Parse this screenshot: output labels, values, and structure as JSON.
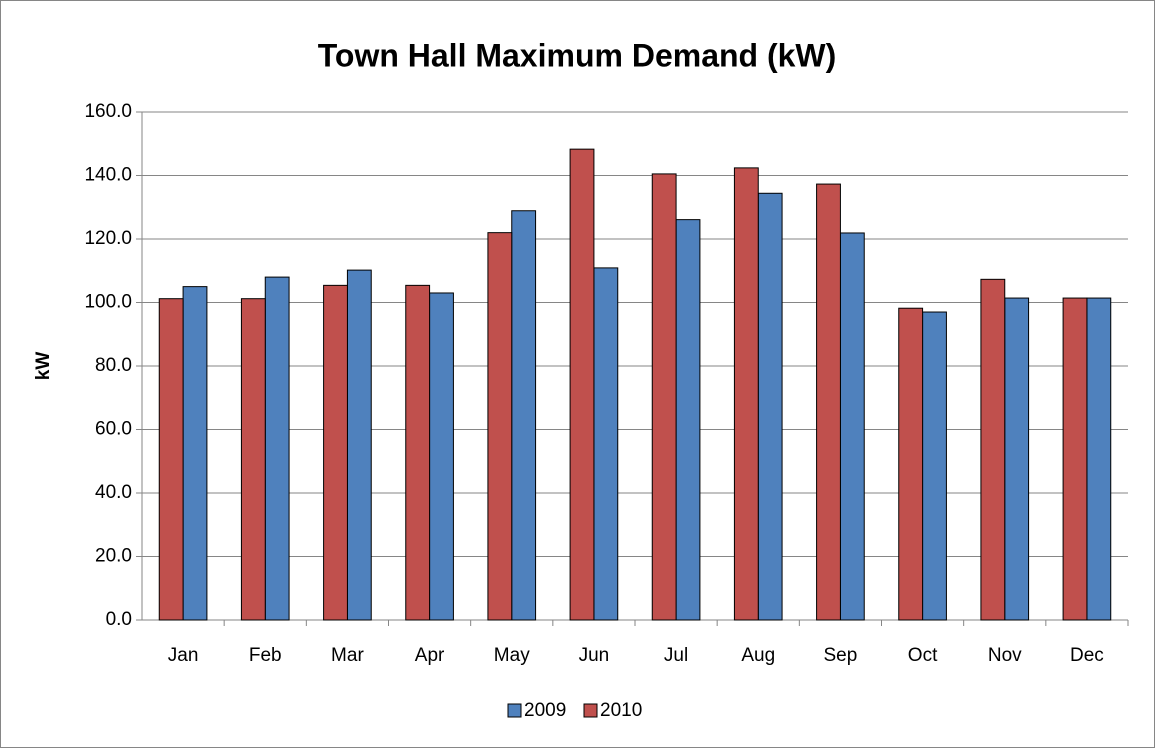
{
  "chart_data": {
    "type": "bar",
    "title": "Town Hall Maximum Demand (kW)",
    "y_label": "kW",
    "categories": [
      "Jan",
      "Feb",
      "Mar",
      "Apr",
      "May",
      "Jun",
      "Jul",
      "Aug",
      "Sep",
      "Oct",
      "Nov",
      "Dec"
    ],
    "series": [
      {
        "name": "2009",
        "color": "#4f81bd",
        "values": [
          105,
          108,
          110.2,
          103,
          128.9,
          110.9,
          126.1,
          134.4,
          121.9,
          97,
          101.4,
          101.4
        ]
      },
      {
        "name": "2010",
        "color": "#c0504d",
        "values": [
          101.2,
          101.2,
          105.4,
          105.4,
          122,
          148.3,
          140.5,
          142.4,
          137.3,
          98.2,
          107.3,
          101.4
        ]
      }
    ],
    "ylim": [
      0,
      160
    ],
    "yticks": [
      {
        "value": 0,
        "label": "0.0"
      },
      {
        "value": 20,
        "label": "20.0"
      },
      {
        "value": 40,
        "label": "40.0"
      },
      {
        "value": 60,
        "label": "60.0"
      },
      {
        "value": 80,
        "label": "80.0"
      },
      {
        "value": 100,
        "label": "100.0"
      },
      {
        "value": 120,
        "label": "120.0"
      },
      {
        "value": 140,
        "label": "140.0"
      },
      {
        "value": 160,
        "label": "160.0"
      }
    ],
    "grid": true,
    "legend": "bottom"
  }
}
